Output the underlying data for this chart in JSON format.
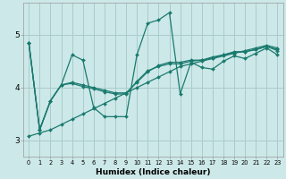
{
  "xlabel": "Humidex (Indice chaleur)",
  "bg_color": "#cce8e8",
  "grid_color": "#aacccc",
  "line_color": "#1a7a6e",
  "xlim": [
    -0.5,
    23.5
  ],
  "ylim": [
    2.7,
    5.6
  ],
  "yticks": [
    3,
    4,
    5
  ],
  "xticks": [
    0,
    1,
    2,
    3,
    4,
    5,
    6,
    7,
    8,
    9,
    10,
    11,
    12,
    13,
    14,
    15,
    16,
    17,
    18,
    19,
    20,
    21,
    22,
    23
  ],
  "series": [
    [
      4.85,
      3.2,
      3.75,
      4.05,
      4.62,
      4.52,
      3.62,
      3.45,
      3.45,
      3.45,
      4.62,
      5.22,
      5.28,
      5.42,
      3.88,
      4.48,
      4.38,
      4.35,
      4.5,
      4.6,
      4.55,
      4.65,
      4.75,
      4.62
    ],
    [
      4.85,
      3.2,
      3.75,
      4.05,
      4.1,
      4.05,
      4.0,
      3.95,
      3.9,
      3.9,
      4.1,
      4.3,
      4.42,
      4.48,
      4.48,
      4.52,
      4.52,
      4.58,
      4.62,
      4.68,
      4.68,
      4.72,
      4.78,
      4.72
    ],
    [
      4.85,
      3.2,
      3.75,
      4.05,
      4.08,
      4.02,
      3.98,
      3.92,
      3.88,
      3.88,
      4.12,
      4.32,
      4.4,
      4.45,
      4.45,
      4.5,
      4.52,
      4.56,
      4.62,
      4.66,
      4.68,
      4.72,
      4.78,
      4.7
    ],
    [
      3.08,
      3.14,
      3.2,
      3.3,
      3.4,
      3.5,
      3.6,
      3.7,
      3.8,
      3.9,
      4.0,
      4.1,
      4.2,
      4.3,
      4.4,
      4.45,
      4.5,
      4.55,
      4.6,
      4.65,
      4.7,
      4.75,
      4.8,
      4.75
    ]
  ]
}
